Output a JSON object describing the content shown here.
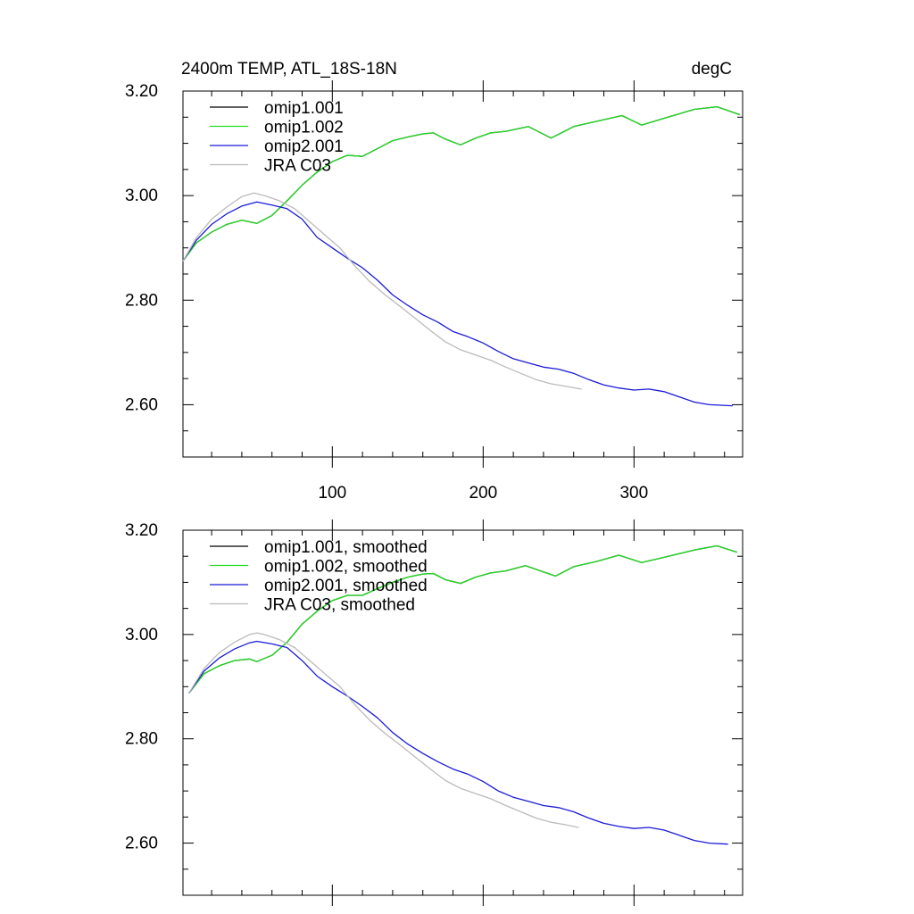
{
  "header": {
    "left_title": "2400m TEMP, ATL_18S-18N",
    "right_title": "degC"
  },
  "colors": {
    "omip1_001": "#000000",
    "omip1_002": "#22dd22",
    "omip2_001": "#1a1ad6",
    "jra_c03": "#bbbbbb"
  },
  "chart_data": [
    {
      "type": "line",
      "panel": "top",
      "xlim": [
        1,
        372
      ],
      "ylim": [
        2.5,
        3.2
      ],
      "x_ticks": [
        100,
        200,
        300
      ],
      "x_tick_labels": [
        "100",
        "200",
        "300"
      ],
      "y_ticks": [
        2.6,
        2.8,
        3.0,
        3.2
      ],
      "y_tick_labels": [
        "2.60",
        "2.80",
        "3.00",
        "3.20"
      ],
      "legend_position": "top-left",
      "legend": [
        "omip1.001",
        "omip1.002",
        "omip2.001",
        "JRA C03"
      ],
      "grid": false,
      "series": [
        {
          "name": "omip1.001",
          "color_key": "omip1_001",
          "x": [
            1,
            10,
            20,
            30,
            40,
            50,
            60,
            70,
            80,
            90,
            100,
            110,
            120,
            130,
            140,
            150,
            160,
            167,
            175,
            185,
            195,
            205,
            215,
            230,
            245,
            260,
            275,
            292,
            305,
            320,
            340,
            355,
            370
          ],
          "y": [
            2.875,
            2.91,
            2.93,
            2.945,
            2.953,
            2.947,
            2.962,
            2.99,
            3.02,
            3.045,
            3.065,
            3.077,
            3.075,
            3.09,
            3.105,
            3.112,
            3.118,
            3.12,
            3.108,
            3.097,
            3.11,
            3.12,
            3.123,
            3.132,
            3.11,
            3.132,
            3.142,
            3.153,
            3.135,
            3.148,
            3.165,
            3.17,
            3.155
          ]
        },
        {
          "name": "omip1.002",
          "color_key": "omip1_002",
          "x": [
            1,
            10,
            20,
            30,
            40,
            50,
            60,
            70,
            80,
            90,
            100,
            110,
            120,
            130,
            140,
            150,
            160,
            167,
            175,
            185,
            195,
            205,
            215,
            230,
            245,
            260,
            275,
            292,
            305,
            320,
            340,
            355,
            370
          ],
          "y": [
            2.875,
            2.91,
            2.93,
            2.945,
            2.953,
            2.947,
            2.962,
            2.99,
            3.02,
            3.045,
            3.065,
            3.077,
            3.075,
            3.09,
            3.105,
            3.112,
            3.118,
            3.12,
            3.108,
            3.097,
            3.11,
            3.12,
            3.123,
            3.132,
            3.11,
            3.132,
            3.142,
            3.153,
            3.135,
            3.148,
            3.165,
            3.17,
            3.155
          ]
        },
        {
          "name": "omip2.001",
          "color_key": "omip2_001",
          "x": [
            1,
            10,
            20,
            30,
            40,
            50,
            60,
            70,
            80,
            90,
            100,
            110,
            120,
            130,
            140,
            150,
            160,
            170,
            180,
            190,
            200,
            210,
            220,
            230,
            240,
            250,
            260,
            270,
            280,
            290,
            300,
            310,
            320,
            330,
            340,
            350,
            365
          ],
          "y": [
            2.875,
            2.915,
            2.945,
            2.965,
            2.98,
            2.988,
            2.982,
            2.975,
            2.955,
            2.92,
            2.9,
            2.88,
            2.862,
            2.838,
            2.81,
            2.79,
            2.772,
            2.758,
            2.74,
            2.73,
            2.718,
            2.702,
            2.688,
            2.68,
            2.672,
            2.668,
            2.66,
            2.648,
            2.638,
            2.632,
            2.628,
            2.63,
            2.625,
            2.615,
            2.605,
            2.6,
            2.598
          ]
        },
        {
          "name": "JRA C03",
          "color_key": "jra_c03",
          "x": [
            1,
            10,
            20,
            30,
            40,
            48,
            55,
            65,
            75,
            85,
            95,
            105,
            115,
            125,
            135,
            145,
            155,
            165,
            175,
            185,
            195,
            205,
            215,
            225,
            235,
            245,
            255,
            265
          ],
          "y": [
            2.875,
            2.92,
            2.955,
            2.978,
            2.998,
            3.005,
            3.0,
            2.99,
            2.975,
            2.95,
            2.925,
            2.9,
            2.865,
            2.835,
            2.81,
            2.788,
            2.765,
            2.742,
            2.72,
            2.705,
            2.695,
            2.685,
            2.672,
            2.66,
            2.648,
            2.64,
            2.635,
            2.63
          ]
        }
      ]
    },
    {
      "type": "line",
      "panel": "bottom",
      "xlim": [
        1,
        372
      ],
      "ylim": [
        2.5,
        3.2
      ],
      "x_ticks": [
        100,
        200,
        300
      ],
      "y_ticks": [
        2.6,
        2.8,
        3.0,
        3.2
      ],
      "y_tick_labels": [
        "2.60",
        "2.80",
        "3.00",
        "3.20"
      ],
      "legend_position": "top-left",
      "legend": [
        "omip1.001, smoothed",
        "omip1.002, smoothed",
        "omip2.001, smoothed",
        "JRA C03, smoothed"
      ],
      "grid": false,
      "series": [
        {
          "name": "omip1.001, smoothed",
          "color_key": "omip1_001",
          "x": [
            5,
            15,
            25,
            35,
            45,
            50,
            60,
            70,
            80,
            90,
            100,
            110,
            120,
            130,
            140,
            150,
            160,
            167,
            175,
            185,
            195,
            205,
            215,
            228,
            240,
            248,
            260,
            275,
            290,
            305,
            320,
            340,
            355,
            368
          ],
          "y": [
            2.888,
            2.925,
            2.94,
            2.95,
            2.953,
            2.948,
            2.96,
            2.985,
            3.02,
            3.045,
            3.065,
            3.075,
            3.075,
            3.088,
            3.1,
            3.11,
            3.116,
            3.117,
            3.105,
            3.098,
            3.11,
            3.118,
            3.122,
            3.132,
            3.12,
            3.112,
            3.13,
            3.14,
            3.152,
            3.138,
            3.148,
            3.162,
            3.17,
            3.158
          ]
        },
        {
          "name": "omip1.002, smoothed",
          "color_key": "omip1_002",
          "x": [
            5,
            15,
            25,
            35,
            45,
            50,
            60,
            70,
            80,
            90,
            100,
            110,
            120,
            130,
            140,
            150,
            160,
            167,
            175,
            185,
            195,
            205,
            215,
            228,
            240,
            248,
            260,
            275,
            290,
            305,
            320,
            340,
            355,
            368
          ],
          "y": [
            2.888,
            2.925,
            2.94,
            2.95,
            2.953,
            2.948,
            2.96,
            2.985,
            3.02,
            3.045,
            3.065,
            3.075,
            3.075,
            3.088,
            3.1,
            3.11,
            3.116,
            3.117,
            3.105,
            3.098,
            3.11,
            3.118,
            3.122,
            3.132,
            3.12,
            3.112,
            3.13,
            3.14,
            3.152,
            3.138,
            3.148,
            3.162,
            3.17,
            3.158
          ]
        },
        {
          "name": "omip2.001, smoothed",
          "color_key": "omip2_001",
          "x": [
            5,
            15,
            25,
            35,
            45,
            50,
            60,
            70,
            80,
            90,
            100,
            110,
            120,
            130,
            140,
            150,
            160,
            170,
            180,
            190,
            200,
            210,
            220,
            230,
            240,
            250,
            260,
            270,
            280,
            290,
            300,
            310,
            320,
            330,
            340,
            350,
            362
          ],
          "y": [
            2.888,
            2.93,
            2.955,
            2.972,
            2.984,
            2.987,
            2.982,
            2.975,
            2.95,
            2.92,
            2.9,
            2.882,
            2.862,
            2.84,
            2.812,
            2.79,
            2.772,
            2.756,
            2.742,
            2.732,
            2.718,
            2.7,
            2.688,
            2.68,
            2.672,
            2.668,
            2.66,
            2.648,
            2.638,
            2.632,
            2.628,
            2.63,
            2.625,
            2.615,
            2.605,
            2.6,
            2.598
          ]
        },
        {
          "name": "JRA C03, smoothed",
          "color_key": "jra_c03",
          "x": [
            5,
            15,
            25,
            35,
            45,
            50,
            55,
            65,
            75,
            85,
            95,
            105,
            115,
            125,
            135,
            145,
            155,
            165,
            175,
            185,
            195,
            205,
            215,
            225,
            235,
            245,
            255,
            263
          ],
          "y": [
            2.888,
            2.935,
            2.965,
            2.985,
            3.0,
            3.003,
            3.0,
            2.99,
            2.975,
            2.95,
            2.925,
            2.9,
            2.865,
            2.835,
            2.81,
            2.788,
            2.765,
            2.742,
            2.72,
            2.705,
            2.695,
            2.685,
            2.672,
            2.66,
            2.648,
            2.64,
            2.635,
            2.63
          ]
        }
      ]
    }
  ]
}
